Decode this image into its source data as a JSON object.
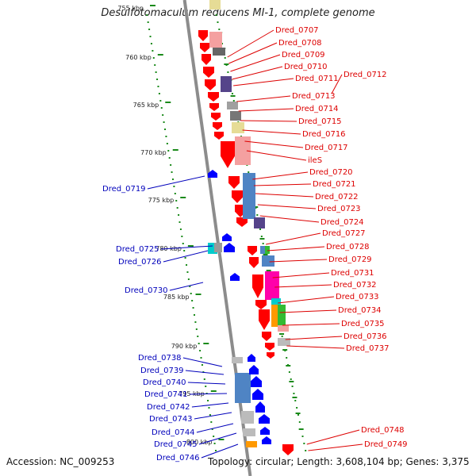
{
  "title": "Desulfotomaculum reducens MI-1, complete genome",
  "footer": {
    "accession": "Accession: NC_009253",
    "topology": "Topology: circular; Length: 3,608,104 bp; Genes: 3,375"
  },
  "colors": {
    "backbone": "#8c8c8c",
    "forward_label": "#dd0000",
    "reverse_label": "#0000bb",
    "forward_gene": "#ff0000",
    "reverse_gene": "#0000ff",
    "tick": "#1a8a1a",
    "cog_blue": "#4f84c4",
    "cog_magenta": "#ff00aa",
    "cog_pink": "#f4a0a0",
    "cog_gray": "#a0a0a0",
    "cog_green": "#33bb33",
    "cog_orange": "#ff9900",
    "cog_cyan": "#00cccc",
    "cog_khaki": "#e6dc96",
    "cog_purple": "#55448a"
  },
  "ticks": [
    "755 kbp",
    "760 kbp",
    "765 kbp",
    "770 kbp",
    "775 kbp",
    "780 kbp",
    "785 kbp",
    "790 kbp",
    "795 kbp",
    "800 kbp"
  ],
  "forward_genes": [
    "Dred_0707",
    "Dred_0708",
    "Dred_0709",
    "Dred_0710",
    "Dred_0711",
    "Dred_0712",
    "Dred_0713",
    "Dred_0714",
    "Dred_0715",
    "Dred_0716",
    "Dred_0717",
    "ileS",
    "Dred_0720",
    "Dred_0721",
    "Dred_0722",
    "Dred_0723",
    "Dred_0724",
    "Dred_0727",
    "Dred_0728",
    "Dred_0729",
    "Dred_0731",
    "Dred_0732",
    "Dred_0733",
    "Dred_0734",
    "Dred_0735",
    "Dred_0736",
    "Dred_0737",
    "Dred_0748",
    "Dred_0749"
  ],
  "reverse_genes": [
    "Dred_0719",
    "Dred_0725",
    "Dred_0726",
    "Dred_0730",
    "Dred_0738",
    "Dred_0739",
    "Dred_0740",
    "Dred_0741",
    "Dred_0742",
    "Dred_0743",
    "Dred_0744",
    "Dred_0745",
    "Dred_0746"
  ]
}
